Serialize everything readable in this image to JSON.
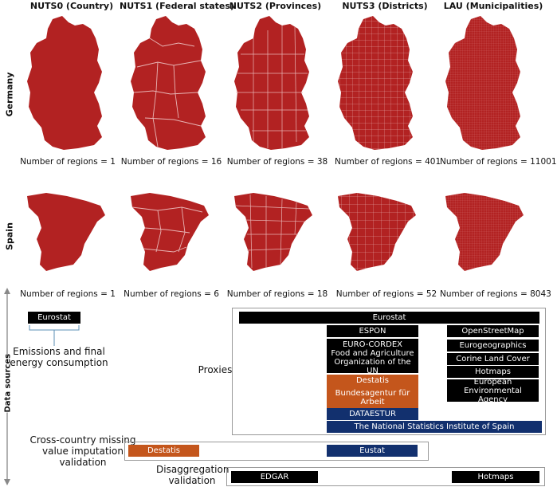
{
  "columns": [
    "NUTS0 (Country)",
    "NUTS1 (Federal states)",
    "NUTS2 (Provinces)",
    "NUTS3 (Districts)",
    "LAU (Municipalities)"
  ],
  "rows": {
    "germany": {
      "label": "Germany",
      "counts": [
        "Number of regions = 1",
        "Number of regions = 16",
        "Number of regions = 38",
        "Number of regions = 401",
        "Number of regions = 11001"
      ]
    },
    "spain": {
      "label": "Spain",
      "counts": [
        "Number of regions = 1",
        "Number of regions = 6",
        "Number of regions = 18",
        "Number of regions = 52",
        "Number of regions = 8043"
      ]
    }
  },
  "colors": {
    "map_fill": "#b22222",
    "black": "#000000",
    "orange": "#c4561c",
    "navy": "#12306e"
  },
  "data_sources": {
    "axis_label": "Data sources",
    "emissions": {
      "source": "Eurostat",
      "label": "Emissions and final energy consumption"
    },
    "proxies": {
      "label": "Proxies",
      "bars": [
        "Eurostat",
        "ESPON",
        "EURO-CORDEX",
        "Food and Agriculture Organization of the UN",
        "Destatis",
        "Bundesagentur für Arbeit",
        "DATAESTUR",
        "The National Statistics Institute of Spain",
        "OpenStreetMap",
        "Eurogeographics",
        "Corine Land Cover",
        "Hotmaps",
        "European Environmental Agency"
      ]
    },
    "imputation": {
      "label": "Cross-country missing value imputation validation",
      "bars": [
        "Destatis",
        "Eustat"
      ]
    },
    "disaggregation": {
      "label": "Disaggregation validation",
      "bars": [
        "EDGAR",
        "Hotmaps"
      ]
    }
  }
}
